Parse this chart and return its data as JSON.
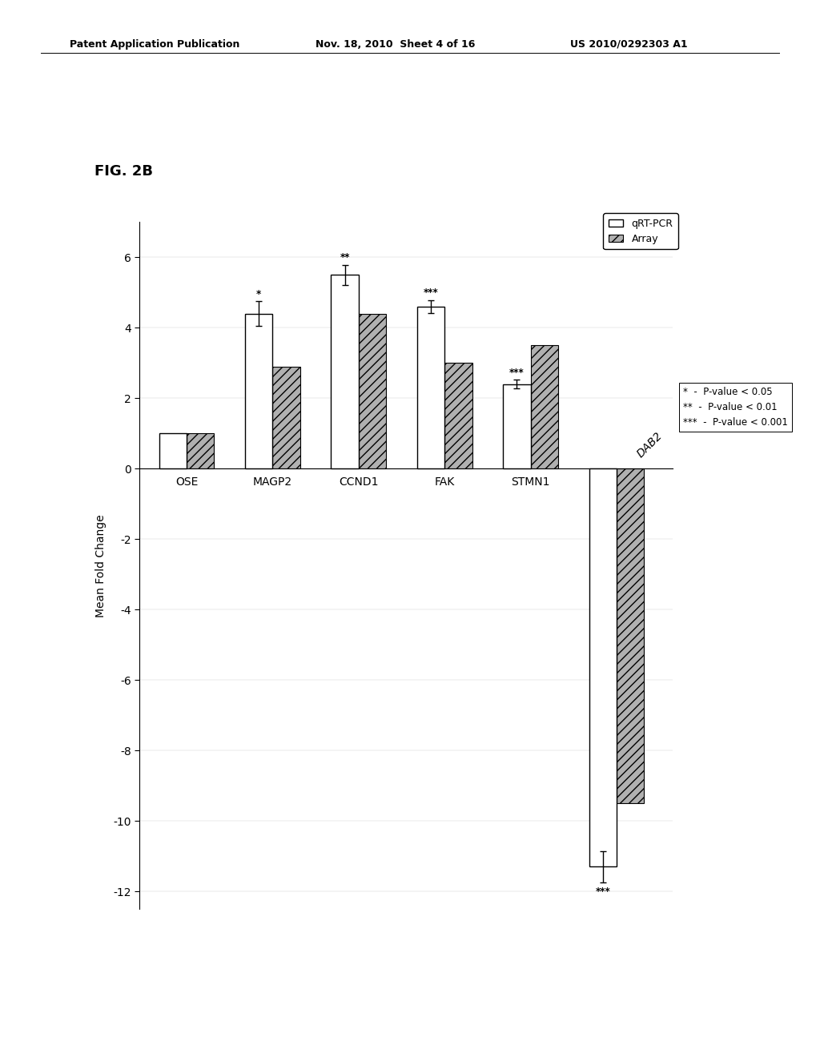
{
  "categories": [
    "OSE",
    "MAGP2",
    "CCND1",
    "FAK",
    "STMN1",
    "DAB2"
  ],
  "qrtpcr_values": [
    1.0,
    4.4,
    5.5,
    4.6,
    2.4,
    -11.3
  ],
  "array_values": [
    1.0,
    2.9,
    4.4,
    3.0,
    3.5,
    -9.5
  ],
  "qrtpcr_errors": [
    0.0,
    0.35,
    0.28,
    0.18,
    0.13,
    0.45
  ],
  "significance": [
    "",
    "*",
    "**",
    "***",
    "***",
    "***"
  ],
  "sig_above_qrtpcr": [
    null,
    4.8,
    5.85,
    4.85,
    2.58,
    null
  ],
  "sig_below_qrtpcr": [
    null,
    null,
    null,
    null,
    null,
    -11.85
  ],
  "ylim": [
    -12.5,
    7.0
  ],
  "yticks": [
    -12,
    -10,
    -8,
    -6,
    -4,
    -2,
    0,
    2,
    4,
    6
  ],
  "ylabel": "Mean Fold Change",
  "qrtpcr_color": "#ffffff",
  "array_color": "#b0b0b0",
  "array_hatch": "///",
  "bar_edgecolor": "#000000",
  "fig_label": "FIG. 2B",
  "header_left": "Patent Application Publication",
  "header_mid": "Nov. 18, 2010  Sheet 4 of 16",
  "header_right": "US 2010/0292303 A1",
  "legend_qrtpcr": "qRT-PCR",
  "legend_array": "Array",
  "legend_note1": "*  -  P-value < 0.05",
  "legend_note2": "**  -  P-value < 0.01",
  "legend_note3": "***  -  P-value < 0.001",
  "bar_width": 0.32
}
